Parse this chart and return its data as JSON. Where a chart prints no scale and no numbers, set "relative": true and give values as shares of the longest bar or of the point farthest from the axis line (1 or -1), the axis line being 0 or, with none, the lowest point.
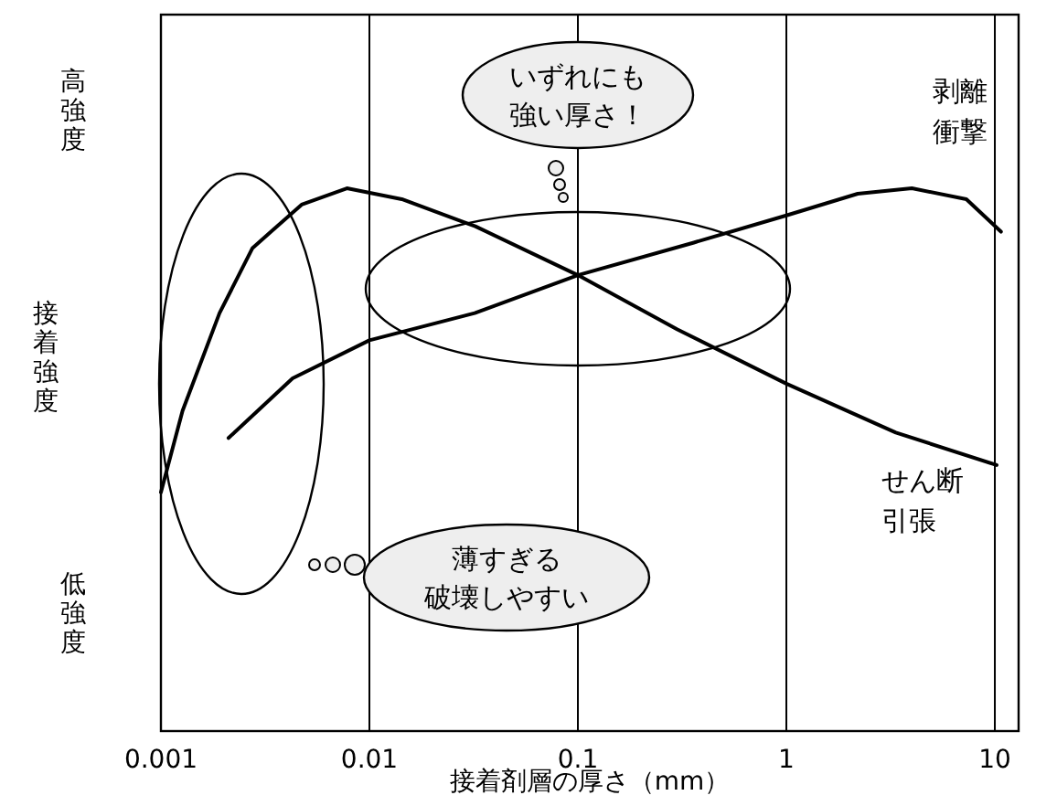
{
  "chart_data": {
    "type": "line",
    "relative": true,
    "xlabel": "接着剤層の厚さ（mm）",
    "ylabel": "接着強度",
    "log": "x",
    "xlim": [
      0.001,
      13
    ],
    "xticks": [
      0.001,
      0.01,
      0.1,
      1,
      10
    ],
    "grid": "x",
    "line_style": "solid",
    "series": [
      {
        "name": "せん断引張",
        "color": "#000000",
        "x": [
          0.001,
          0.00127,
          0.00191,
          0.00275,
          0.00473,
          0.0078,
          0.0143,
          0.0322,
          0.1,
          0.3,
          1,
          3.35,
          10.2
        ],
        "values": [
          0.44,
          0.59,
          0.77,
          0.89,
          0.97,
          1.0,
          0.98,
          0.93,
          0.84,
          0.74,
          0.64,
          0.55,
          0.49
        ]
      },
      {
        "name": "剥離衝撃",
        "color": "#000000",
        "x": [
          0.00211,
          0.00428,
          0.01,
          0.032,
          0.1,
          0.36,
          1,
          2.2,
          4.0,
          7.3,
          10.7
        ],
        "values": [
          0.54,
          0.65,
          0.72,
          0.77,
          0.84,
          0.9,
          0.95,
          0.99,
          1.0,
          0.98,
          0.92
        ]
      }
    ],
    "annotations": [
      "高強度",
      "低強度",
      "いずれにも強い厚さ！",
      "薄すぎる破壊しやすい"
    ]
  }
}
